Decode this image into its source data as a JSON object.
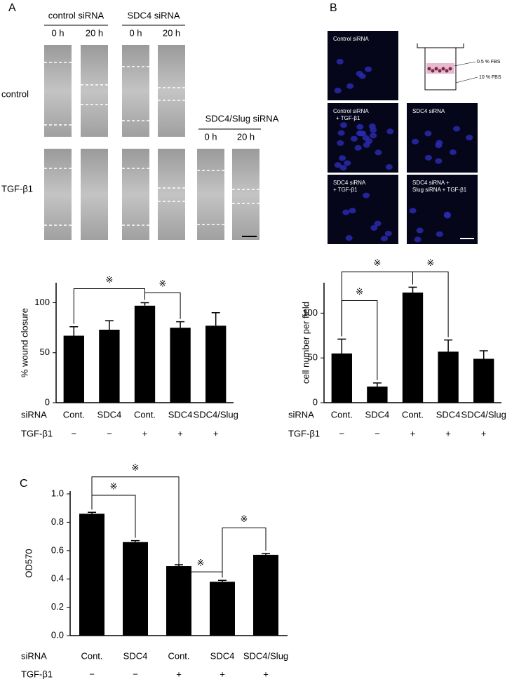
{
  "panel_labels": [
    "A",
    "B",
    "C"
  ],
  "wound_images": {
    "groups": [
      "control siRNA",
      "SDC4 siRNA",
      "SDC4/Slug siRNA"
    ],
    "times": [
      "0 h",
      "20 h"
    ],
    "rows": [
      "control",
      "TGF-β1"
    ]
  },
  "migration_images": {
    "captions": [
      [
        "Control siRNA"
      ],
      [
        "Control siRNA",
        "+ TGF-β1"
      ],
      [
        "SDC4 siRNA"
      ],
      [
        "SDC4 siRNA",
        "+ TGF-β1"
      ],
      [
        "SDC4 siRNA +",
        "Slug siRNA + TGF-β1"
      ]
    ],
    "insert_labels": [
      "0.5 % FBS",
      "10 % FBS"
    ]
  },
  "chart_data": [
    {
      "type": "bar",
      "ylabel": "% wound closure",
      "color": "#000000",
      "row_labels": [
        "siRNA",
        "TGF-β1"
      ],
      "categories": [
        "Cont.",
        "SDC4",
        "Cont.",
        "SDC4",
        "SDC4/Slug"
      ],
      "treatment": [
        "−",
        "−",
        "+",
        "+",
        "+"
      ],
      "values": [
        67,
        73,
        97,
        75,
        77
      ],
      "errors": [
        9,
        9,
        3,
        6,
        13
      ],
      "ylim": [
        0,
        120
      ],
      "yticks": [
        0,
        50,
        100
      ],
      "annotations": [
        "※",
        "※"
      ]
    },
    {
      "type": "bar",
      "ylabel": "cell number per field",
      "color": "#000000",
      "row_labels": [
        "siRNA",
        "TGF-β1"
      ],
      "categories": [
        "Cont.",
        "SDC4",
        "Cont.",
        "SDC4",
        "SDC4/Slug"
      ],
      "treatment": [
        "−",
        "−",
        "+",
        "+",
        "+"
      ],
      "values": [
        55,
        18,
        123,
        57,
        49
      ],
      "errors": [
        16,
        4,
        6,
        13,
        9
      ],
      "ylim": [
        0,
        134
      ],
      "yticks": [
        0,
        50,
        100
      ],
      "annotations": [
        "※",
        "※",
        "※"
      ]
    },
    {
      "type": "bar",
      "ylabel": "OD570",
      "color": "#000000",
      "row_labels": [
        "siRNA",
        "TGF-β1"
      ],
      "categories": [
        "Cont.",
        "SDC4",
        "Cont.",
        "SDC4",
        "SDC4/Slug"
      ],
      "treatment": [
        "−",
        "−",
        "+",
        "+",
        "+"
      ],
      "values": [
        0.86,
        0.66,
        0.49,
        0.38,
        0.57
      ],
      "errors": [
        0.01,
        0.01,
        0.01,
        0.01,
        0.01
      ],
      "ylim": [
        0,
        1.02
      ],
      "yticks": [
        {
          "value": 0,
          "label": "0.0"
        },
        0.2,
        0.4,
        0.6,
        0.8,
        {
          "value": 1,
          "label": "1.0"
        }
      ],
      "annotations": [
        "※",
        "※",
        "※",
        "※"
      ]
    }
  ]
}
